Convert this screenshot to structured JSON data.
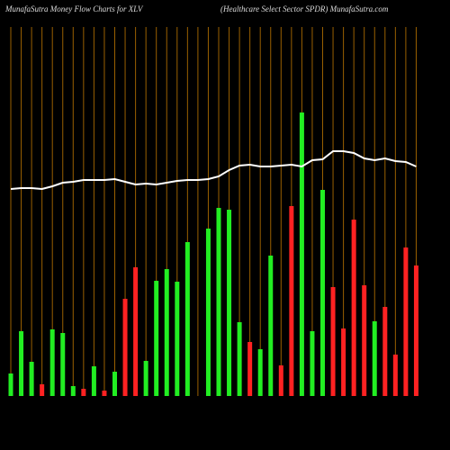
{
  "chart_data": {
    "type": "bar",
    "title": "MunafaSutra  Money Flow  Charts for XLV",
    "subtitle": "(Healthcare   Select Sector SPDR) MunafaSutra.com",
    "categories": [
      null,
      null,
      null,
      null,
      null,
      null,
      null,
      null,
      null,
      null,
      null,
      null,
      null,
      null,
      null,
      null,
      null,
      null,
      null,
      null,
      null,
      null,
      null,
      null,
      null,
      null,
      null,
      null,
      null,
      null,
      null,
      null,
      null,
      null,
      null,
      null,
      null,
      null,
      null,
      null
    ],
    "values": [
      25,
      72,
      38,
      13,
      74,
      70,
      11,
      8,
      33,
      6,
      27,
      108,
      143,
      39,
      128,
      141,
      127,
      171,
      0,
      186,
      209,
      207,
      82,
      60,
      52,
      156,
      34,
      211,
      315,
      72,
      229,
      121,
      75,
      196,
      123,
      83,
      99,
      46,
      165,
      145
    ],
    "colors": [
      "#22ee22",
      "#22ee22",
      "#22ee22",
      "#ff2222",
      "#22ee22",
      "#22ee22",
      "#22ee22",
      "#ff2222",
      "#22ee22",
      "#ff2222",
      "#22ee22",
      "#ff2222",
      "#ff2222",
      "#22ee22",
      "#22ee22",
      "#22ee22",
      "#22ee22",
      "#22ee22",
      "#22ee22",
      "#22ee22",
      "#22ee22",
      "#22ee22",
      "#22ee22",
      "#ff2222",
      "#22ee22",
      "#22ee22",
      "#ff2222",
      "#ff2222",
      "#22ee22",
      "#22ee22",
      "#22ee22",
      "#ff2222",
      "#ff2222",
      "#ff2222",
      "#ff2222",
      "#22ee22",
      "#ff2222",
      "#ff2222",
      "#ff2222",
      "#ff2222"
    ],
    "line": {
      "color": "#ffffff",
      "values": [
        230,
        231,
        231,
        230,
        233,
        237,
        238,
        240,
        240,
        240,
        241,
        238,
        235,
        236,
        235,
        237,
        239,
        240,
        240,
        241,
        244,
        251,
        256,
        257,
        255,
        255,
        256,
        257,
        255,
        262,
        263,
        272,
        272,
        270,
        264,
        262,
        264,
        261,
        260,
        255
      ]
    },
    "ylim": [
      0,
      330
    ],
    "grid": true,
    "grid_color": "#9a6000"
  }
}
